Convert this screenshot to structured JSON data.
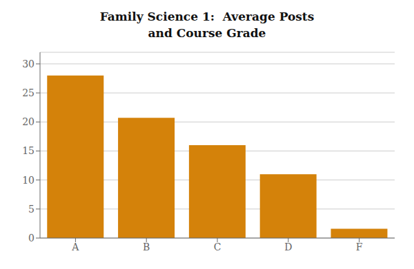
{
  "chart_data": {
    "type": "bar",
    "title": "Family Science 1:  Average Posts\nand Course Grade",
    "categories": [
      "A",
      "B",
      "C",
      "D",
      "F"
    ],
    "values": [
      28,
      20.7,
      16,
      11,
      1.6
    ],
    "color": "#D4820A",
    "ylim": [
      0,
      32
    ],
    "yticks": [
      0,
      5,
      10,
      15,
      20,
      25,
      30
    ],
    "grid": true
  }
}
